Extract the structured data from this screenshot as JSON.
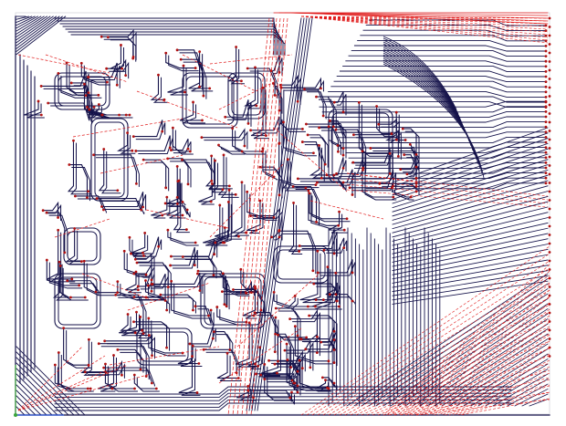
{
  "view": {
    "type": "pcb-routing-view",
    "background_color": "#ffffff",
    "trace_color": "#14124a",
    "ratsnest_color": "#e01818",
    "pad_color": "#b01010",
    "origin_marker_color": "#3aa53a",
    "origin_marker_accent": "#2a55d8",
    "layers_visible": [
      "traces",
      "ratsnest",
      "pads",
      "board-outline"
    ]
  }
}
